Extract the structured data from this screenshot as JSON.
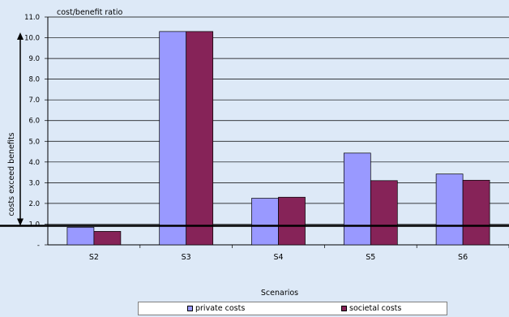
{
  "chart_data": {
    "type": "bar",
    "title": "",
    "ylabel": "cost/benefit ratio",
    "xlabel": "Scenarios",
    "categories": [
      "S2",
      "S3",
      "S4",
      "S5",
      "S6"
    ],
    "series": [
      {
        "name": "private costs",
        "color": "#9999ff",
        "values": [
          0.85,
          10.3,
          2.25,
          4.43,
          3.42
        ]
      },
      {
        "name": "societal costs",
        "color": "#862358",
        "values": [
          0.65,
          10.3,
          2.3,
          3.1,
          3.12
        ]
      }
    ],
    "ylim": [
      0,
      11
    ],
    "yticks": [
      "-",
      "1.0",
      "2.0",
      "3.0",
      "4.0",
      "5.0",
      "6.0",
      "7.0",
      "8.0",
      "9.0",
      "10.0",
      "11.0"
    ],
    "reference_line": {
      "value": 0.92
    },
    "annotation": "costs exceed benefits",
    "grid": true,
    "legend_position": "bottom"
  }
}
